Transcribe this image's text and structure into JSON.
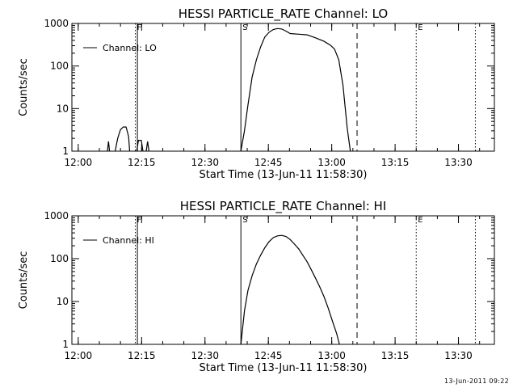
{
  "footer": {
    "stamp": "13-Jun-2011 09:22"
  },
  "chart_data": [
    {
      "type": "line",
      "title": "HESSI PARTICLE_RATE Channel: LO",
      "xlabel": "Start Time (13-Jun-11 11:58:30)",
      "ylabel": "Counts/sec",
      "yscale": "log",
      "xlim": [
        "11:58:30",
        "13:38:30"
      ],
      "ylim": [
        1,
        1000
      ],
      "xticks": [
        "12:00",
        "12:15",
        "12:30",
        "12:45",
        "13:00",
        "13:15",
        "13:30"
      ],
      "yticks": [
        "1",
        "10",
        "100",
        "1000"
      ],
      "legend": {
        "position": "top-left",
        "label": "Channel: LO"
      },
      "markers": [
        {
          "label": "F",
          "time": "12:13:30",
          "style": "dotted"
        },
        {
          "label": "",
          "time": "12:14:00",
          "style": "solid"
        },
        {
          "label": "S",
          "time": "12:38:30",
          "style": "solid"
        },
        {
          "label": "",
          "time": "13:06:00",
          "style": "dashed"
        },
        {
          "label": "E",
          "time": "13:20:00",
          "style": "dotted"
        },
        {
          "label": "",
          "time": "13:34:00",
          "style": "dotted"
        }
      ],
      "series": [
        {
          "name": "Channel: LO",
          "points": [
            [
              "12:06:55",
              1.0
            ],
            [
              "12:07:10",
              1.7
            ],
            [
              "12:07:25",
              1.0
            ],
            [
              "12:08:45",
              1.0
            ],
            [
              "12:09:20",
              2.0
            ],
            [
              "12:10:00",
              3.2
            ],
            [
              "12:10:40",
              3.7
            ],
            [
              "12:11:20",
              3.7
            ],
            [
              "12:11:55",
              2.2
            ],
            [
              "12:12:10",
              1.0
            ],
            [
              "12:13:50",
              1.0
            ],
            [
              "12:14:15",
              1.8
            ],
            [
              "12:14:55",
              1.8
            ],
            [
              "12:15:20",
              1.0
            ],
            [
              "12:16:05",
              1.0
            ],
            [
              "12:16:25",
              1.7
            ],
            [
              "12:16:45",
              1.0
            ],
            [
              "12:38:30",
              1.0
            ],
            [
              "12:39:20",
              3.0
            ],
            [
              "12:40:10",
              12
            ],
            [
              "12:41:10",
              55
            ],
            [
              "12:42:10",
              140
            ],
            [
              "12:43:10",
              280
            ],
            [
              "12:44:10",
              480
            ],
            [
              "12:45:10",
              620
            ],
            [
              "12:46:10",
              720
            ],
            [
              "12:47:10",
              760
            ],
            [
              "12:48:10",
              740
            ],
            [
              "12:49:10",
              660
            ],
            [
              "12:50:10",
              580
            ],
            [
              "12:52:10",
              560
            ],
            [
              "12:54:10",
              540
            ],
            [
              "12:56:10",
              460
            ],
            [
              "12:58:10",
              380
            ],
            [
              "12:59:40",
              310
            ],
            [
              "13:00:40",
              250
            ],
            [
              "13:01:40",
              140
            ],
            [
              "13:02:40",
              35
            ],
            [
              "13:03:40",
              3.5
            ],
            [
              "13:04:25",
              1.0
            ]
          ]
        }
      ]
    },
    {
      "type": "line",
      "title": "HESSI PARTICLE_RATE Channel: HI",
      "xlabel": "Start Time (13-Jun-11 11:58:30)",
      "ylabel": "Counts/sec",
      "yscale": "log",
      "xlim": [
        "11:58:30",
        "13:38:30"
      ],
      "ylim": [
        1,
        1000
      ],
      "xticks": [
        "12:00",
        "12:15",
        "12:30",
        "12:45",
        "13:00",
        "13:15",
        "13:30"
      ],
      "yticks": [
        "1",
        "10",
        "100",
        "1000"
      ],
      "legend": {
        "position": "top-left",
        "label": "Channel: HI"
      },
      "markers": [
        {
          "label": "F",
          "time": "12:13:30",
          "style": "dotted"
        },
        {
          "label": "",
          "time": "12:14:00",
          "style": "solid"
        },
        {
          "label": "S",
          "time": "12:38:30",
          "style": "solid"
        },
        {
          "label": "",
          "time": "13:06:00",
          "style": "dashed"
        },
        {
          "label": "E",
          "time": "13:20:00",
          "style": "dotted"
        },
        {
          "label": "",
          "time": "13:34:00",
          "style": "dotted"
        }
      ],
      "series": [
        {
          "name": "Channel: HI",
          "points": [
            [
              "12:38:30",
              1.0
            ],
            [
              "12:39:20",
              6
            ],
            [
              "12:40:10",
              18
            ],
            [
              "12:41:10",
              40
            ],
            [
              "12:42:10",
              75
            ],
            [
              "12:43:10",
              120
            ],
            [
              "12:44:10",
              180
            ],
            [
              "12:45:10",
              250
            ],
            [
              "12:46:10",
              310
            ],
            [
              "12:47:10",
              340
            ],
            [
              "12:48:10",
              350
            ],
            [
              "12:49:10",
              330
            ],
            [
              "12:50:10",
              280
            ],
            [
              "12:51:10",
              220
            ],
            [
              "12:52:10",
              170
            ],
            [
              "12:53:10",
              120
            ],
            [
              "12:54:10",
              85
            ],
            [
              "12:55:10",
              55
            ],
            [
              "12:56:10",
              35
            ],
            [
              "12:57:10",
              22
            ],
            [
              "12:58:10",
              13
            ],
            [
              "12:59:10",
              7
            ],
            [
              "13:00:10",
              3.5
            ],
            [
              "13:01:10",
              1.8
            ],
            [
              "13:01:50",
              1.0
            ]
          ]
        }
      ]
    }
  ]
}
